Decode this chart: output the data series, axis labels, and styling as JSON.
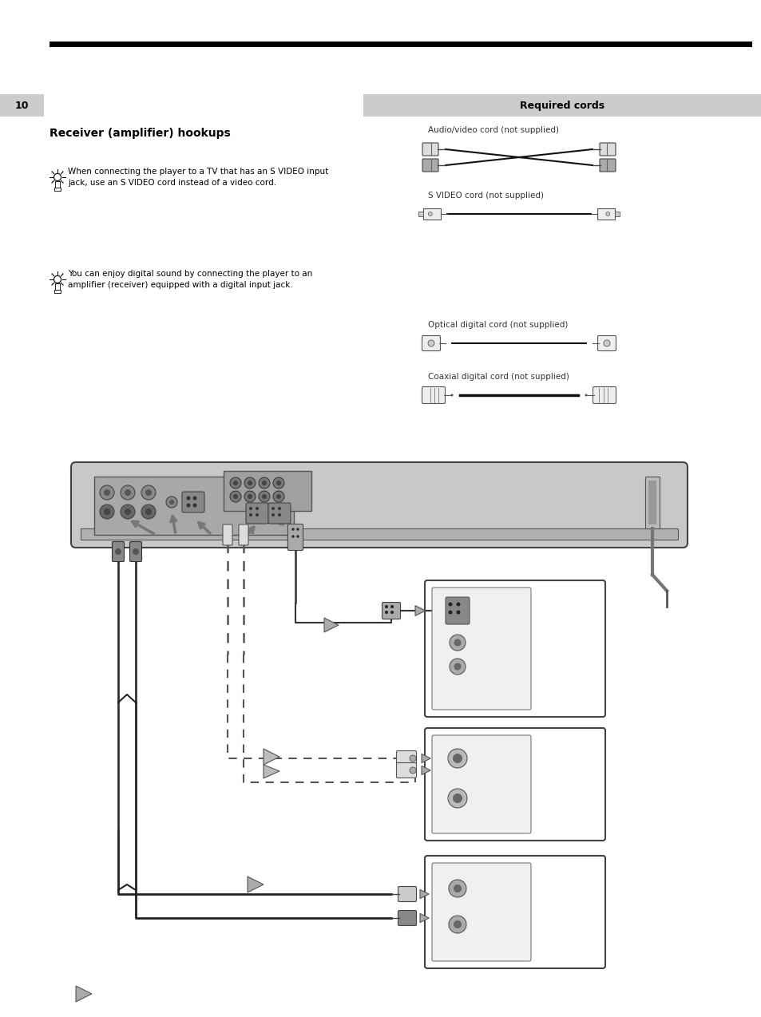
{
  "page_bg": "#ffffff",
  "top_bar_color": "#000000",
  "left_tab_text": "10",
  "right_header_text": "Required cords",
  "section_title": "Receiver (amplifier) hookups",
  "tip1_text": "When connecting the player to a TV that has an S VIDEO input\njack, use an S VIDEO cord instead of a video cord.",
  "tip2_text": "You can enjoy digital sound by connecting the player to an\namplifier (receiver) equipped with a digital input jack.",
  "cable1_label": "Audio/video cord (not supplied)",
  "cable2_label": "S VIDEO cord (not supplied)",
  "cable3_label": "Optical digital cord (not supplied)",
  "cable4_label": "Coaxial digital cord (not supplied)"
}
